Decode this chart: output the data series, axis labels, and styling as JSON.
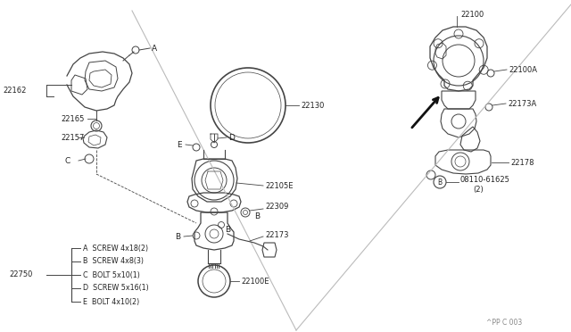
{
  "bg_color": "#ffffff",
  "line_color": "#444444",
  "text_color": "#222222",
  "fig_width": 6.4,
  "fig_height": 3.72,
  "dpi": 100,
  "footer": "^PP C 003",
  "legend_items": [
    [
      "A",
      "SCREW 4x18(2)"
    ],
    [
      "B",
      "SCREW 4x8(3)"
    ],
    [
      "C",
      "BOLT 5x10(1)"
    ],
    [
      "D",
      "SCREW 5x16(1)"
    ],
    [
      "E",
      "BOLT 4x10(2)"
    ]
  ]
}
